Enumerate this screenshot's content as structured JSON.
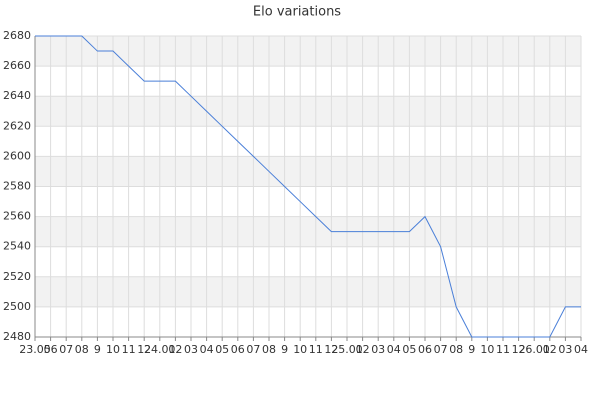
{
  "chart_data": {
    "type": "line",
    "title": "Elo variations",
    "categories": [
      "23.05",
      "06",
      "07",
      "08",
      "9",
      "10",
      "11",
      "12",
      "24.01",
      "02",
      "03",
      "04",
      "05",
      "06",
      "07",
      "08",
      "9",
      "10",
      "11",
      "12",
      "25.01",
      "02",
      "03",
      "04",
      "05",
      "06",
      "07",
      "08",
      "9",
      "10",
      "11",
      "12",
      "26.01",
      "02",
      "03",
      "04"
    ],
    "values": [
      2680,
      2680,
      2680,
      2680,
      2670,
      2670,
      2660,
      2650,
      2650,
      2650,
      2640,
      2630,
      2620,
      2610,
      2600,
      2590,
      2580,
      2570,
      2560,
      2550,
      2550,
      2550,
      2550,
      2550,
      2550,
      2560,
      2540,
      2500,
      2480,
      2480,
      2480,
      2480,
      2480,
      2480,
      2500,
      2500
    ],
    "color": "#4a7fd8",
    "ylim": [
      2480,
      2680
    ],
    "yticks": [
      2480,
      2500,
      2520,
      2540,
      2560,
      2580,
      2600,
      2620,
      2640,
      2660,
      2680
    ],
    "grid": true
  }
}
